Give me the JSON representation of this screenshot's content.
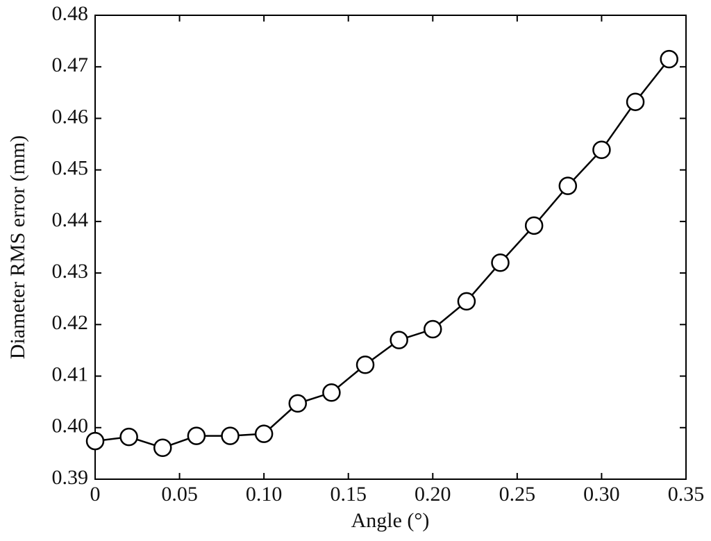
{
  "chart_data": {
    "type": "line",
    "xlabel": "Angle (°)",
    "ylabel": "Diameter RMS error (mm)",
    "x": [
      0,
      0.02,
      0.04,
      0.06,
      0.08,
      0.1,
      0.12,
      0.14,
      0.16,
      0.18,
      0.2,
      0.22,
      0.24,
      0.26,
      0.28,
      0.3,
      0.32,
      0.34
    ],
    "series": [
      {
        "color": "#000000",
        "values": [
          0.3974,
          0.3982,
          0.3961,
          0.3984,
          0.3984,
          0.3988,
          0.4047,
          0.4068,
          0.4122,
          0.417,
          0.4191,
          0.4245,
          0.432,
          0.4392,
          0.4469,
          0.4539,
          0.4632,
          0.4715
        ]
      }
    ],
    "xlim": [
      0,
      0.35
    ],
    "ylim": [
      0.39,
      0.48
    ],
    "xticks": [
      0,
      0.05,
      {
        "value": 0.1,
        "label": "0.10"
      },
      0.15,
      {
        "value": 0.2,
        "label": "0.20"
      },
      0.25,
      {
        "value": 0.3,
        "label": "0.30"
      },
      0.35
    ],
    "yticks": [
      0.39,
      {
        "value": 0.4,
        "label": "0.40"
      },
      0.41,
      0.42,
      0.43,
      0.44,
      0.45,
      0.46,
      0.47,
      0.48
    ],
    "marker": "circle",
    "grid": false
  }
}
